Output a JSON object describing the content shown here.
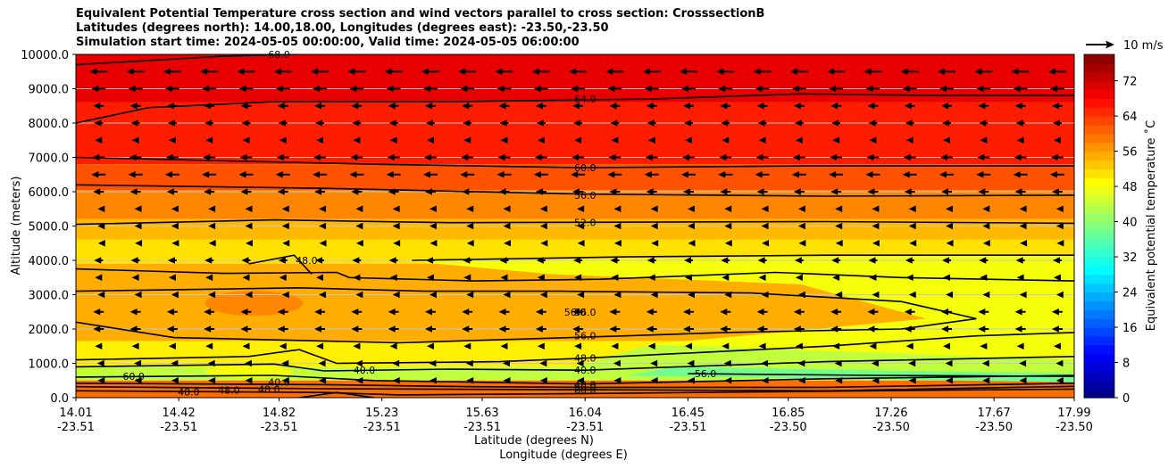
{
  "chart_data": {
    "type": "contour",
    "title_lines": [
      "Equivalent Potential Temperature cross section and wind vectors parallel to cross section: CrosssectionB",
      "Latitudes (degrees north): 14.00,18.00, Longitudes (degrees east): -23.50,-23.50",
      "Simulation start time: 2024-05-05 00:00:00, Valid time: 2024-05-05 06:00:00"
    ],
    "xlabel_lat": "Latitude (degrees N)",
    "xlabel_lon": "Longitude (degrees E)",
    "ylabel": "Altitude (meters)",
    "ylim": [
      0,
      10000
    ],
    "yticks": [
      "0.0",
      "1000.0",
      "2000.0",
      "3000.0",
      "4000.0",
      "5000.0",
      "6000.0",
      "7000.0",
      "8000.0",
      "9000.0",
      "10000.0"
    ],
    "xlim": [
      14.01,
      17.99
    ],
    "xticks": [
      {
        "lat": "14.01",
        "lon": "-23.51"
      },
      {
        "lat": "14.42",
        "lon": "-23.51"
      },
      {
        "lat": "14.82",
        "lon": "-23.51"
      },
      {
        "lat": "15.23",
        "lon": "-23.51"
      },
      {
        "lat": "15.63",
        "lon": "-23.51"
      },
      {
        "lat": "16.04",
        "lon": "-23.51"
      },
      {
        "lat": "16.45",
        "lon": "-23.51"
      },
      {
        "lat": "16.85",
        "lon": "-23.50"
      },
      {
        "lat": "17.26",
        "lon": "-23.50"
      },
      {
        "lat": "17.67",
        "lon": "-23.50"
      },
      {
        "lat": "17.99",
        "lon": "-23.50"
      }
    ],
    "grid": "horizontal",
    "colorbar": {
      "label": "Equivalent potential temperature ˚C",
      "ticks": [
        "0",
        "8",
        "16",
        "24",
        "32",
        "40",
        "48",
        "56",
        "64",
        "72"
      ],
      "range": [
        0,
        78
      ],
      "colormap": "jet"
    },
    "quiver_key": "10 m/s",
    "contour_lines": [
      {
        "label": "64.0",
        "lat": 16.04,
        "alt": 8700
      },
      {
        "label": "60.0",
        "lat": 16.04,
        "alt": 6700
      },
      {
        "label": "56.0",
        "lat": 16.04,
        "alt": 5900
      },
      {
        "label": "52.0",
        "lat": 16.04,
        "alt": 5100
      },
      {
        "label": "48.0",
        "lat": 14.93,
        "alt": 4000
      },
      {
        "label": "56.0",
        "lat": 16.0,
        "alt": 2500
      },
      {
        "label": "56.0",
        "lat": 16.04,
        "alt": 2500
      },
      {
        "label": "56.0",
        "lat": 16.04,
        "alt": 1800
      },
      {
        "label": "48.0",
        "lat": 16.04,
        "alt": 1150
      },
      {
        "label": "40.0",
        "lat": 16.04,
        "alt": 800
      },
      {
        "label": "40.0",
        "lat": 15.16,
        "alt": 800
      },
      {
        "label": "48.0",
        "lat": 14.78,
        "alt": 250
      },
      {
        "label": "48.0",
        "lat": 14.62,
        "alt": 220
      },
      {
        "label": "40.0",
        "lat": 14.82,
        "alt": 450
      },
      {
        "label": "48.0",
        "lat": 16.04,
        "alt": 380
      },
      {
        "label": "56.0",
        "lat": 16.04,
        "alt": 300
      },
      {
        "label": "60.0",
        "lat": 16.04,
        "alt": 220
      },
      {
        "label": "56.0",
        "lat": 16.52,
        "alt": 700
      },
      {
        "label": "60.0",
        "lat": 14.24,
        "alt": 620
      },
      {
        "label": "48.0",
        "lat": 14.46,
        "alt": 170
      },
      {
        "label": "68.0",
        "lat": 14.82,
        "alt": 10000
      }
    ],
    "wind_u_profile": [
      {
        "alt": 9500,
        "u_ms": -5
      },
      {
        "alt": 9000,
        "u_ms": -4
      },
      {
        "alt": 8500,
        "u_ms": -3
      },
      {
        "alt": 8000,
        "u_ms": -2.5
      },
      {
        "alt": 7500,
        "u_ms": -2
      },
      {
        "alt": 7000,
        "u_ms": -3.5
      },
      {
        "alt": 6500,
        "u_ms": -4
      },
      {
        "alt": 6000,
        "u_ms": -3
      },
      {
        "alt": 5500,
        "u_ms": -1
      },
      {
        "alt": 5000,
        "u_ms": -1
      },
      {
        "alt": 4500,
        "u_ms": -0.5
      },
      {
        "alt": 4000,
        "u_ms": -2.5
      },
      {
        "alt": 3500,
        "u_ms": -2
      },
      {
        "alt": 3000,
        "u_ms": -1
      },
      {
        "alt": 2500,
        "u_ms": -3
      },
      {
        "alt": 2000,
        "u_ms": -3
      },
      {
        "alt": 1500,
        "u_ms": -2
      },
      {
        "alt": 1000,
        "u_ms": -1.5
      },
      {
        "alt": 500,
        "u_ms": -1
      }
    ]
  }
}
